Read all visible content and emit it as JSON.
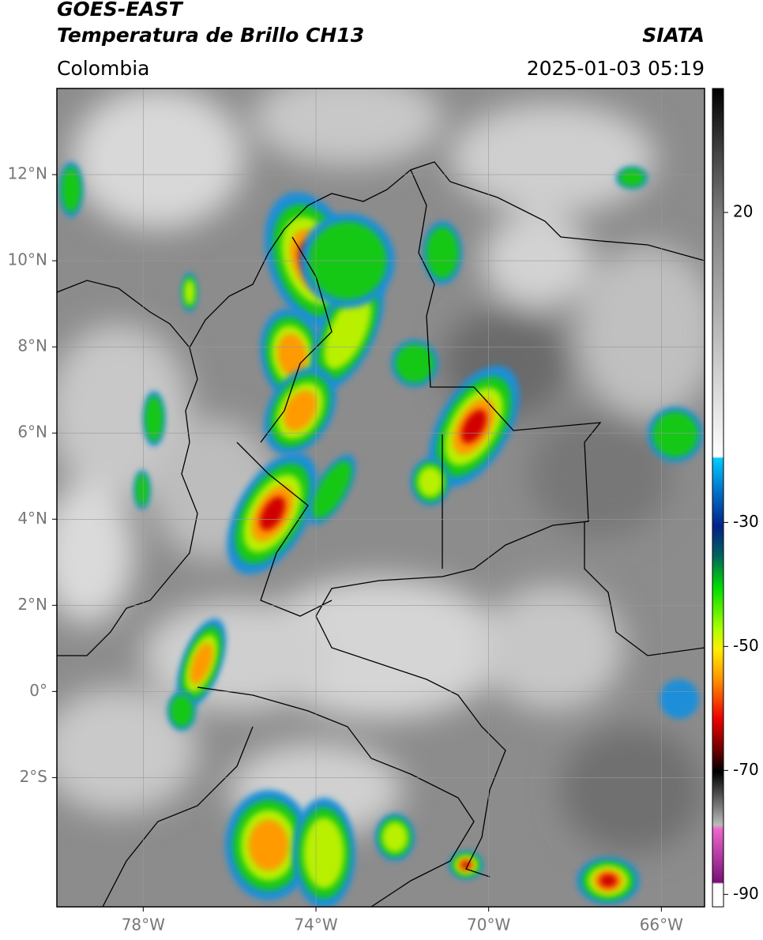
{
  "header": {
    "title": "GOES-EAST",
    "subtitle": "Temperatura de Brillo CH13",
    "source": "SIATA",
    "region": "Colombia",
    "datetime": "2025-01-03 05:19"
  },
  "map": {
    "xlim": [
      -80,
      -65
    ],
    "ylim": [
      -5,
      14
    ],
    "xticks": [
      {
        "value": -78,
        "label": "78°W"
      },
      {
        "value": -74,
        "label": "74°W"
      },
      {
        "value": -70,
        "label": "70°W"
      },
      {
        "value": -66,
        "label": "66°W"
      }
    ],
    "yticks": [
      {
        "value": 12,
        "label": "12°N"
      },
      {
        "value": 10,
        "label": "10°N"
      },
      {
        "value": 8,
        "label": "8°N"
      },
      {
        "value": 6,
        "label": "6°N"
      },
      {
        "value": 4,
        "label": "4°N"
      },
      {
        "value": 2,
        "label": "2°N"
      },
      {
        "value": 0,
        "label": "0°"
      },
      {
        "value": -2,
        "label": "2°S"
      }
    ]
  },
  "colorbar": {
    "lim": [
      -92,
      40
    ],
    "ticks": [
      20,
      -30,
      -50,
      -70,
      -90
    ]
  }
}
